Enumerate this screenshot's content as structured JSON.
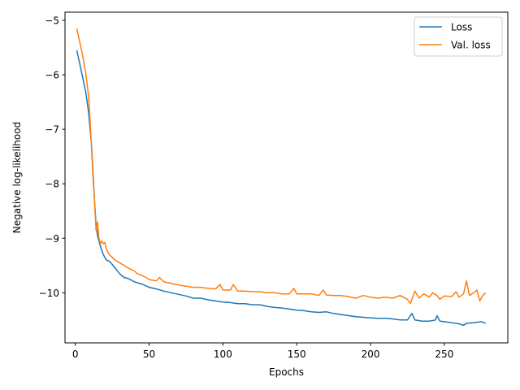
{
  "chart_data": {
    "type": "line",
    "title": "",
    "xlabel": "Epochs",
    "ylabel": "Negative log-likelihood",
    "xlim": [
      -7,
      293
    ],
    "ylim": [
      -10.92,
      -4.85
    ],
    "xticks": [
      0,
      50,
      100,
      150,
      200,
      250
    ],
    "xtick_labels": [
      "0",
      "50",
      "100",
      "150",
      "200",
      "250"
    ],
    "yticks": [
      -5,
      -6,
      -7,
      -8,
      -9,
      -10
    ],
    "ytick_labels": [
      "−5",
      "−6",
      "−7",
      "−8",
      "−9",
      "−10"
    ],
    "grid": false,
    "legend_position": "top-right",
    "series": [
      {
        "name": "Loss",
        "color": "#1f77b4",
        "points": [
          [
            1,
            -5.55
          ],
          [
            3,
            -5.8
          ],
          [
            5,
            -6.05
          ],
          [
            7,
            -6.3
          ],
          [
            9,
            -6.7
          ],
          [
            11,
            -7.3
          ],
          [
            12,
            -7.8
          ],
          [
            13,
            -8.3
          ],
          [
            14,
            -8.75
          ],
          [
            15,
            -8.95
          ],
          [
            17,
            -9.15
          ],
          [
            19,
            -9.3
          ],
          [
            21,
            -9.4
          ],
          [
            23,
            -9.42
          ],
          [
            25,
            -9.48
          ],
          [
            27,
            -9.55
          ],
          [
            30,
            -9.65
          ],
          [
            33,
            -9.72
          ],
          [
            36,
            -9.74
          ],
          [
            40,
            -9.8
          ],
          [
            45,
            -9.84
          ],
          [
            50,
            -9.9
          ],
          [
            55,
            -9.93
          ],
          [
            60,
            -9.97
          ],
          [
            65,
            -10.0
          ],
          [
            70,
            -10.03
          ],
          [
            75,
            -10.06
          ],
          [
            80,
            -10.1
          ],
          [
            85,
            -10.1
          ],
          [
            90,
            -10.13
          ],
          [
            95,
            -10.15
          ],
          [
            100,
            -10.17
          ],
          [
            105,
            -10.18
          ],
          [
            110,
            -10.2
          ],
          [
            115,
            -10.2
          ],
          [
            120,
            -10.22
          ],
          [
            125,
            -10.22
          ],
          [
            130,
            -10.25
          ],
          [
            135,
            -10.27
          ],
          [
            140,
            -10.28
          ],
          [
            145,
            -10.3
          ],
          [
            150,
            -10.32
          ],
          [
            155,
            -10.33
          ],
          [
            160,
            -10.35
          ],
          [
            165,
            -10.36
          ],
          [
            170,
            -10.35
          ],
          [
            175,
            -10.38
          ],
          [
            180,
            -10.4
          ],
          [
            185,
            -10.42
          ],
          [
            190,
            -10.44
          ],
          [
            195,
            -10.45
          ],
          [
            200,
            -10.46
          ],
          [
            205,
            -10.47
          ],
          [
            210,
            -10.47
          ],
          [
            215,
            -10.48
          ],
          [
            220,
            -10.5
          ],
          [
            225,
            -10.5
          ],
          [
            228,
            -10.38
          ],
          [
            230,
            -10.5
          ],
          [
            235,
            -10.52
          ],
          [
            240,
            -10.52
          ],
          [
            244,
            -10.5
          ],
          [
            245,
            -10.42
          ],
          [
            247,
            -10.52
          ],
          [
            250,
            -10.53
          ],
          [
            255,
            -10.55
          ],
          [
            260,
            -10.57
          ],
          [
            263,
            -10.6
          ],
          [
            265,
            -10.56
          ],
          [
            270,
            -10.55
          ],
          [
            275,
            -10.53
          ],
          [
            278,
            -10.56
          ]
        ]
      },
      {
        "name": "Val. loss",
        "color": "#ff7f0e",
        "points": [
          [
            1,
            -5.15
          ],
          [
            3,
            -5.4
          ],
          [
            5,
            -5.65
          ],
          [
            7,
            -5.95
          ],
          [
            9,
            -6.4
          ],
          [
            10,
            -6.85
          ],
          [
            11,
            -7.35
          ],
          [
            12,
            -7.9
          ],
          [
            13,
            -8.3
          ],
          [
            14,
            -8.85
          ],
          [
            15,
            -8.7
          ],
          [
            16,
            -9.0
          ],
          [
            17,
            -9.1
          ],
          [
            18,
            -9.05
          ],
          [
            19,
            -9.1
          ],
          [
            20,
            -9.08
          ],
          [
            21,
            -9.2
          ],
          [
            23,
            -9.3
          ],
          [
            25,
            -9.35
          ],
          [
            27,
            -9.4
          ],
          [
            30,
            -9.45
          ],
          [
            33,
            -9.5
          ],
          [
            36,
            -9.55
          ],
          [
            40,
            -9.6
          ],
          [
            42,
            -9.65
          ],
          [
            45,
            -9.68
          ],
          [
            48,
            -9.72
          ],
          [
            50,
            -9.76
          ],
          [
            55,
            -9.78
          ],
          [
            57,
            -9.72
          ],
          [
            60,
            -9.8
          ],
          [
            65,
            -9.83
          ],
          [
            70,
            -9.86
          ],
          [
            75,
            -9.88
          ],
          [
            80,
            -9.9
          ],
          [
            85,
            -9.9
          ],
          [
            90,
            -9.92
          ],
          [
            95,
            -9.93
          ],
          [
            98,
            -9.85
          ],
          [
            100,
            -9.95
          ],
          [
            105,
            -9.95
          ],
          [
            107,
            -9.85
          ],
          [
            110,
            -9.97
          ],
          [
            115,
            -9.97
          ],
          [
            120,
            -9.98
          ],
          [
            125,
            -9.98
          ],
          [
            130,
            -10.0
          ],
          [
            135,
            -10.0
          ],
          [
            140,
            -10.02
          ],
          [
            145,
            -10.02
          ],
          [
            148,
            -9.92
          ],
          [
            150,
            -10.02
          ],
          [
            155,
            -10.02
          ],
          [
            160,
            -10.02
          ],
          [
            165,
            -10.05
          ],
          [
            168,
            -9.95
          ],
          [
            170,
            -10.04
          ],
          [
            175,
            -10.05
          ],
          [
            180,
            -10.05
          ],
          [
            185,
            -10.07
          ],
          [
            190,
            -10.1
          ],
          [
            195,
            -10.05
          ],
          [
            200,
            -10.08
          ],
          [
            205,
            -10.1
          ],
          [
            210,
            -10.08
          ],
          [
            215,
            -10.1
          ],
          [
            220,
            -10.05
          ],
          [
            225,
            -10.12
          ],
          [
            227,
            -10.2
          ],
          [
            230,
            -9.97
          ],
          [
            233,
            -10.1
          ],
          [
            236,
            -10.02
          ],
          [
            240,
            -10.08
          ],
          [
            242,
            -10.0
          ],
          [
            245,
            -10.05
          ],
          [
            247,
            -10.12
          ],
          [
            250,
            -10.06
          ],
          [
            255,
            -10.07
          ],
          [
            258,
            -9.98
          ],
          [
            260,
            -10.08
          ],
          [
            263,
            -10.02
          ],
          [
            265,
            -9.78
          ],
          [
            267,
            -10.05
          ],
          [
            270,
            -10.0
          ],
          [
            272,
            -9.95
          ],
          [
            274,
            -10.15
          ],
          [
            276,
            -10.05
          ],
          [
            278,
            -10.0
          ]
        ]
      }
    ]
  }
}
